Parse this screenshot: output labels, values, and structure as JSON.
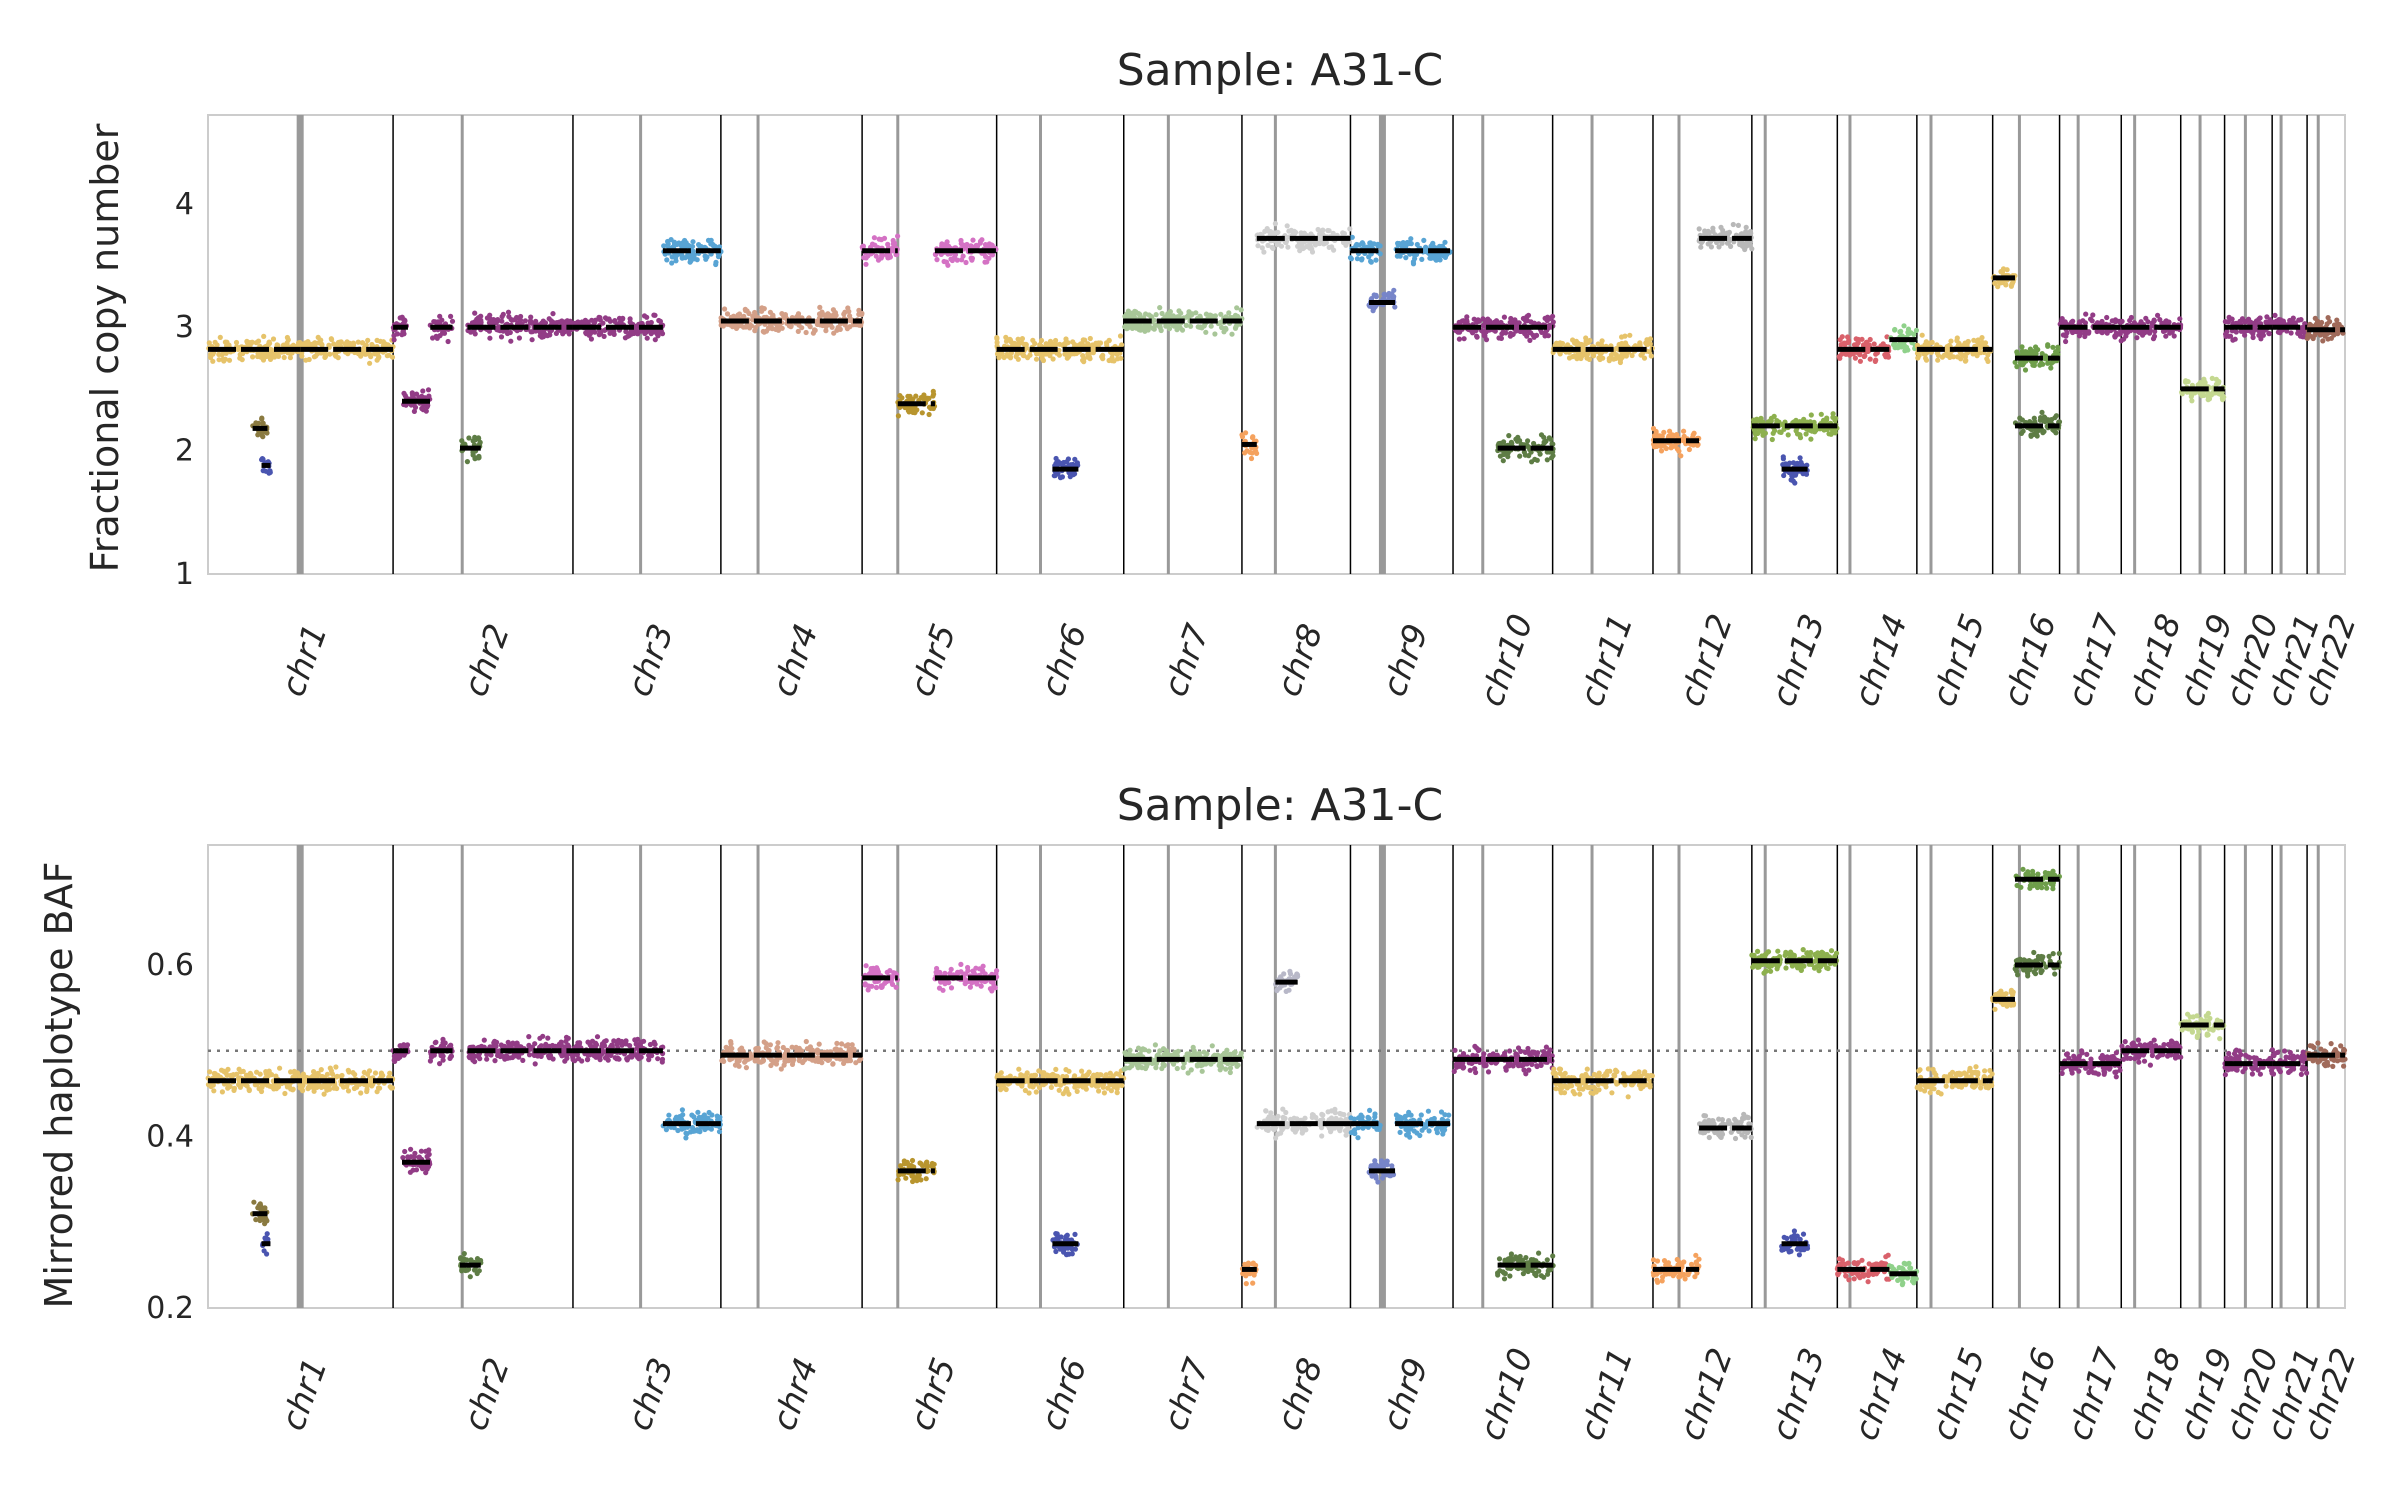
{
  "chart_data": [
    {
      "type": "scatter",
      "title": "Sample: A31-C",
      "ylabel": "Fractional copy number",
      "xlabel": "",
      "ylim": [
        1,
        4.72
      ],
      "yticks": [
        1,
        2,
        3,
        4
      ],
      "grid": false,
      "chromosomes": [
        "chr1",
        "chr2",
        "chr3",
        "chr4",
        "chr5",
        "chr6",
        "chr7",
        "chr8",
        "chr9",
        "chr10",
        "chr11",
        "chr12",
        "chr13",
        "chr14",
        "chr15",
        "chr16",
        "chr17",
        "chr18",
        "chr19",
        "chr20",
        "chr21",
        "chr22"
      ],
      "chromosome_bounds": [
        0,
        249,
        491,
        690,
        880,
        1061,
        1232,
        1391,
        1537,
        1675,
        1809,
        1944,
        2077,
        2192,
        2299,
        2401,
        2491,
        2574,
        2654,
        2713,
        2777,
        2824,
        2875
      ],
      "centromeres": [
        124,
        93,
        91,
        50,
        48,
        59,
        60,
        45,
        43,
        40,
        53,
        35,
        18,
        17,
        19,
        36,
        25,
        18,
        26,
        28,
        12,
        15
      ],
      "segments": [
        {
          "chrom": "chr1",
          "start": 0,
          "end": 124,
          "value": 2.82,
          "color": "#e6c36a"
        },
        {
          "chrom": "chr1",
          "start": 124,
          "end": 249,
          "value": 2.82,
          "color": "#e6c36a"
        },
        {
          "chrom": "chr1",
          "start": 60,
          "end": 80,
          "value": 2.18,
          "color": "#8a7a40"
        },
        {
          "chrom": "chr1",
          "start": 72,
          "end": 84,
          "value": 1.88,
          "color": "#4a55b0"
        },
        {
          "chrom": "chr2",
          "start": 0,
          "end": 20,
          "value": 3.0,
          "color": "#923c86"
        },
        {
          "chrom": "chr2",
          "start": 12,
          "end": 50,
          "value": 2.4,
          "color": "#923c86"
        },
        {
          "chrom": "chr2",
          "start": 50,
          "end": 80,
          "value": 3.0,
          "color": "#923c86"
        },
        {
          "chrom": "chr2",
          "start": 90,
          "end": 118,
          "value": 2.02,
          "color": "#5e7d45"
        },
        {
          "chrom": "chr2",
          "start": 100,
          "end": 242,
          "value": 3.0,
          "color": "#923c86"
        },
        {
          "chrom": "chr3",
          "start": 0,
          "end": 121,
          "value": 3.0,
          "color": "#923c86"
        },
        {
          "chrom": "chr3",
          "start": 121,
          "end": 199,
          "value": 3.62,
          "color": "#58a4d4"
        },
        {
          "chrom": "chr4",
          "start": 0,
          "end": 190,
          "value": 3.05,
          "color": "#d4a088"
        },
        {
          "chrom": "chr5",
          "start": 0,
          "end": 48,
          "value": 3.62,
          "color": "#d472c4"
        },
        {
          "chrom": "chr5",
          "start": 48,
          "end": 98,
          "value": 2.38,
          "color": "#b8952e"
        },
        {
          "chrom": "chr5",
          "start": 98,
          "end": 181,
          "value": 3.62,
          "color": "#d472c4"
        },
        {
          "chrom": "chr6",
          "start": 0,
          "end": 171,
          "value": 2.82,
          "color": "#e6c36a"
        },
        {
          "chrom": "chr6",
          "start": 75,
          "end": 110,
          "value": 1.85,
          "color": "#4a55b0"
        },
        {
          "chrom": "chr7",
          "start": 0,
          "end": 159,
          "value": 3.05,
          "color": "#a8c698"
        },
        {
          "chrom": "chr8",
          "start": 0,
          "end": 20,
          "value": 2.05,
          "color": "#f5a25e"
        },
        {
          "chrom": "chr8",
          "start": 20,
          "end": 146,
          "value": 3.72,
          "color": "#cfcfcf"
        },
        {
          "chrom": "chr9",
          "start": 0,
          "end": 40,
          "value": 3.62,
          "color": "#58a4d4"
        },
        {
          "chrom": "chr9",
          "start": 25,
          "end": 60,
          "value": 3.2,
          "color": "#7785c9"
        },
        {
          "chrom": "chr9",
          "start": 60,
          "end": 134,
          "value": 3.62,
          "color": "#58a4d4"
        },
        {
          "chrom": "chr10",
          "start": 0,
          "end": 135,
          "value": 3.0,
          "color": "#923c86"
        },
        {
          "chrom": "chr10",
          "start": 60,
          "end": 135,
          "value": 2.02,
          "color": "#5e7d45"
        },
        {
          "chrom": "chr11",
          "start": 0,
          "end": 135,
          "value": 2.82,
          "color": "#e6c36a"
        },
        {
          "chrom": "chr12",
          "start": 0,
          "end": 62,
          "value": 2.08,
          "color": "#f5a25e"
        },
        {
          "chrom": "chr12",
          "start": 62,
          "end": 133,
          "value": 3.72,
          "color": "#b8b8b8"
        },
        {
          "chrom": "chr13",
          "start": 0,
          "end": 115,
          "value": 2.2,
          "color": "#8db04e"
        },
        {
          "chrom": "chr13",
          "start": 40,
          "end": 75,
          "value": 1.85,
          "color": "#4a55b0"
        },
        {
          "chrom": "chr14",
          "start": 0,
          "end": 70,
          "value": 2.82,
          "color": "#d9616b"
        },
        {
          "chrom": "chr14",
          "start": 70,
          "end": 107,
          "value": 2.9,
          "color": "#8fd18a"
        },
        {
          "chrom": "chr15",
          "start": 0,
          "end": 102,
          "value": 2.82,
          "color": "#e6c36a"
        },
        {
          "chrom": "chr16",
          "start": 0,
          "end": 30,
          "value": 3.4,
          "color": "#e6c36a"
        },
        {
          "chrom": "chr16",
          "start": 30,
          "end": 90,
          "value": 2.75,
          "color": "#6e9e4a"
        },
        {
          "chrom": "chr16",
          "start": 30,
          "end": 90,
          "value": 2.2,
          "color": "#5e7d45"
        },
        {
          "chrom": "chr17",
          "start": 0,
          "end": 83,
          "value": 3.0,
          "color": "#923c86"
        },
        {
          "chrom": "chr18",
          "start": 0,
          "end": 80,
          "value": 3.0,
          "color": "#923c86"
        },
        {
          "chrom": "chr19",
          "start": 0,
          "end": 59,
          "value": 2.5,
          "color": "#c4d890"
        },
        {
          "chrom": "chr20",
          "start": 0,
          "end": 64,
          "value": 3.0,
          "color": "#923c86"
        },
        {
          "chrom": "chr21",
          "start": 0,
          "end": 47,
          "value": 3.0,
          "color": "#923c86"
        },
        {
          "chrom": "chr22",
          "start": 0,
          "end": 51,
          "value": 2.98,
          "color": "#a06a5a"
        }
      ],
      "reference_line": null
    },
    {
      "type": "scatter",
      "title": "Sample: A31-C",
      "ylabel": "Mirrored haplotype BAF",
      "xlabel": "",
      "ylim": [
        0.2,
        0.74
      ],
      "yticks": [
        0.2,
        0.4,
        0.6
      ],
      "grid": false,
      "chromosomes": [
        "chr1",
        "chr2",
        "chr3",
        "chr4",
        "chr5",
        "chr6",
        "chr7",
        "chr8",
        "chr9",
        "chr10",
        "chr11",
        "chr12",
        "chr13",
        "chr14",
        "chr15",
        "chr16",
        "chr17",
        "chr18",
        "chr19",
        "chr20",
        "chr21",
        "chr22"
      ],
      "chromosome_bounds": [
        0,
        249,
        491,
        690,
        880,
        1061,
        1232,
        1391,
        1537,
        1675,
        1809,
        1944,
        2077,
        2192,
        2299,
        2401,
        2491,
        2574,
        2654,
        2713,
        2777,
        2824,
        2875
      ],
      "centromeres": [
        124,
        93,
        91,
        50,
        48,
        59,
        60,
        45,
        43,
        40,
        53,
        35,
        18,
        17,
        19,
        36,
        25,
        18,
        26,
        28,
        12,
        15
      ],
      "segments": [
        {
          "chrom": "chr1",
          "start": 0,
          "end": 249,
          "value": 0.465,
          "color": "#e6c36a"
        },
        {
          "chrom": "chr1",
          "start": 60,
          "end": 80,
          "value": 0.31,
          "color": "#8a7a40"
        },
        {
          "chrom": "chr1",
          "start": 72,
          "end": 84,
          "value": 0.275,
          "color": "#4a55b0"
        },
        {
          "chrom": "chr2",
          "start": 0,
          "end": 20,
          "value": 0.5,
          "color": "#923c86"
        },
        {
          "chrom": "chr2",
          "start": 12,
          "end": 50,
          "value": 0.37,
          "color": "#923c86"
        },
        {
          "chrom": "chr2",
          "start": 50,
          "end": 80,
          "value": 0.5,
          "color": "#923c86"
        },
        {
          "chrom": "chr2",
          "start": 90,
          "end": 118,
          "value": 0.25,
          "color": "#5e7d45"
        },
        {
          "chrom": "chr2",
          "start": 100,
          "end": 242,
          "value": 0.5,
          "color": "#923c86"
        },
        {
          "chrom": "chr3",
          "start": 0,
          "end": 121,
          "value": 0.5,
          "color": "#923c86"
        },
        {
          "chrom": "chr3",
          "start": 121,
          "end": 199,
          "value": 0.415,
          "color": "#58a4d4"
        },
        {
          "chrom": "chr4",
          "start": 0,
          "end": 190,
          "value": 0.495,
          "color": "#d4a088"
        },
        {
          "chrom": "chr5",
          "start": 0,
          "end": 48,
          "value": 0.585,
          "color": "#d472c4"
        },
        {
          "chrom": "chr5",
          "start": 48,
          "end": 98,
          "value": 0.36,
          "color": "#b8952e"
        },
        {
          "chrom": "chr5",
          "start": 98,
          "end": 181,
          "value": 0.585,
          "color": "#d472c4"
        },
        {
          "chrom": "chr6",
          "start": 0,
          "end": 171,
          "value": 0.465,
          "color": "#e6c36a"
        },
        {
          "chrom": "chr6",
          "start": 75,
          "end": 110,
          "value": 0.275,
          "color": "#4a55b0"
        },
        {
          "chrom": "chr7",
          "start": 0,
          "end": 159,
          "value": 0.49,
          "color": "#a8c698"
        },
        {
          "chrom": "chr8",
          "start": 0,
          "end": 20,
          "value": 0.245,
          "color": "#f5a25e"
        },
        {
          "chrom": "chr8",
          "start": 20,
          "end": 146,
          "value": 0.415,
          "color": "#cfcfcf"
        },
        {
          "chrom": "chr8",
          "start": 45,
          "end": 75,
          "value": 0.58,
          "color": "#b8b8c8"
        },
        {
          "chrom": "chr9",
          "start": 0,
          "end": 40,
          "value": 0.415,
          "color": "#58a4d4"
        },
        {
          "chrom": "chr9",
          "start": 25,
          "end": 60,
          "value": 0.36,
          "color": "#7785c9"
        },
        {
          "chrom": "chr9",
          "start": 60,
          "end": 134,
          "value": 0.415,
          "color": "#58a4d4"
        },
        {
          "chrom": "chr10",
          "start": 0,
          "end": 135,
          "value": 0.49,
          "color": "#923c86"
        },
        {
          "chrom": "chr10",
          "start": 60,
          "end": 135,
          "value": 0.25,
          "color": "#5e7d45"
        },
        {
          "chrom": "chr11",
          "start": 0,
          "end": 135,
          "value": 0.465,
          "color": "#e6c36a"
        },
        {
          "chrom": "chr12",
          "start": 0,
          "end": 62,
          "value": 0.245,
          "color": "#f5a25e"
        },
        {
          "chrom": "chr12",
          "start": 62,
          "end": 133,
          "value": 0.41,
          "color": "#b8b8b8"
        },
        {
          "chrom": "chr13",
          "start": 0,
          "end": 115,
          "value": 0.605,
          "color": "#8db04e"
        },
        {
          "chrom": "chr13",
          "start": 40,
          "end": 75,
          "value": 0.275,
          "color": "#4a55b0"
        },
        {
          "chrom": "chr14",
          "start": 0,
          "end": 70,
          "value": 0.245,
          "color": "#d9616b"
        },
        {
          "chrom": "chr14",
          "start": 70,
          "end": 107,
          "value": 0.24,
          "color": "#8fd18a"
        },
        {
          "chrom": "chr15",
          "start": 0,
          "end": 102,
          "value": 0.465,
          "color": "#e6c36a"
        },
        {
          "chrom": "chr16",
          "start": 0,
          "end": 30,
          "value": 0.56,
          "color": "#e6c36a"
        },
        {
          "chrom": "chr16",
          "start": 30,
          "end": 90,
          "value": 0.7,
          "color": "#6e9e4a"
        },
        {
          "chrom": "chr16",
          "start": 30,
          "end": 90,
          "value": 0.6,
          "color": "#5e7d45"
        },
        {
          "chrom": "chr17",
          "start": 0,
          "end": 83,
          "value": 0.485,
          "color": "#923c86"
        },
        {
          "chrom": "chr18",
          "start": 0,
          "end": 80,
          "value": 0.5,
          "color": "#923c86"
        },
        {
          "chrom": "chr19",
          "start": 0,
          "end": 59,
          "value": 0.53,
          "color": "#c4d890"
        },
        {
          "chrom": "chr20",
          "start": 0,
          "end": 64,
          "value": 0.485,
          "color": "#923c86"
        },
        {
          "chrom": "chr21",
          "start": 0,
          "end": 47,
          "value": 0.485,
          "color": "#923c86"
        },
        {
          "chrom": "chr22",
          "start": 0,
          "end": 51,
          "value": 0.495,
          "color": "#a06a5a"
        }
      ],
      "reference_line": 0.5
    }
  ]
}
